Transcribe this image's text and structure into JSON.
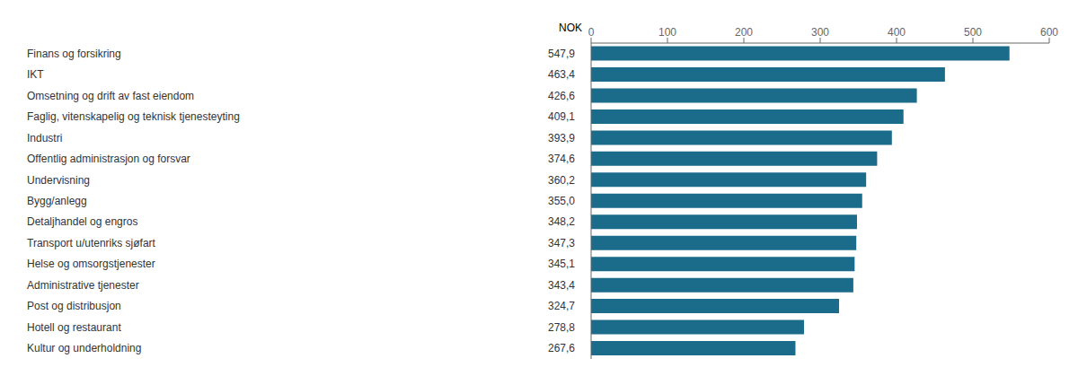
{
  "chart_data": {
    "type": "bar",
    "orientation": "horizontal",
    "xlabel": "NOK",
    "categories": [
      "Finans og forsikring",
      "IKT",
      "Omsetning og drift av fast eiendom",
      "Faglig, vitenskapelig og teknisk tjenesteyting",
      "Industri",
      "Offentlig administrasjon og forsvar",
      "Undervisning",
      "Bygg/anlegg",
      "Detaljhandel og engros",
      "Transport u/utenriks sjøfart",
      "Helse og omsorgstjenester",
      "Administrative tjenester",
      "Post og distribusjon",
      "Hotell og restaurant",
      "Kultur og underholdning"
    ],
    "values": [
      547.9,
      463.4,
      426.6,
      409.1,
      393.9,
      374.6,
      360.2,
      355.0,
      348.2,
      347.3,
      345.1,
      343.4,
      324.7,
      278.8,
      267.6
    ],
    "value_labels": [
      "547,9",
      "463,4",
      "426,6",
      "409,1",
      "393,9",
      "374,6",
      "360,2",
      "355,0",
      "348,2",
      "347,3",
      "345,1",
      "343,4",
      "324,7",
      "278,8",
      "267,6"
    ],
    "data_labels": true,
    "color": "#1b6b8a",
    "xlim": [
      0,
      600
    ],
    "xticks": [
      0,
      100,
      200,
      300,
      400,
      500,
      600
    ],
    "grid": false
  }
}
